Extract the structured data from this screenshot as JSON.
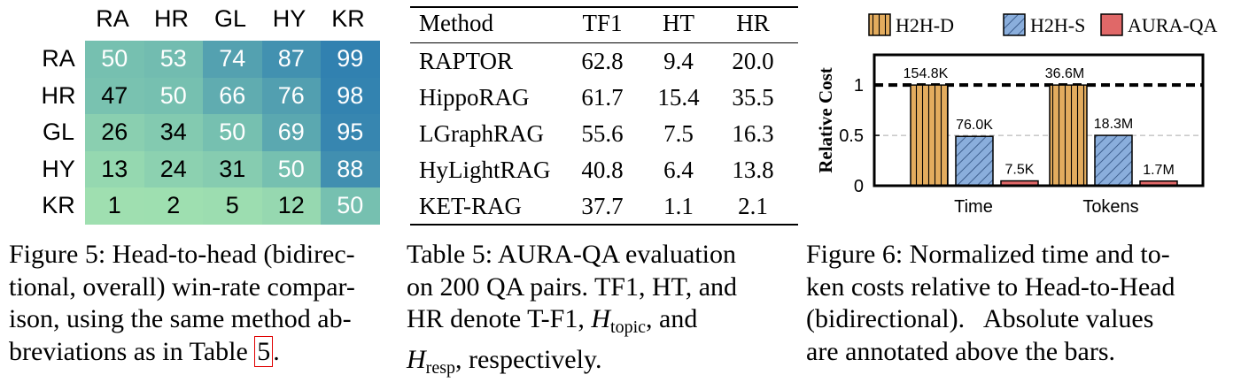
{
  "figure5": {
    "col_labels": [
      "RA",
      "HR",
      "GL",
      "HY",
      "KR"
    ],
    "row_labels": [
      "RA",
      "HR",
      "GL",
      "HY",
      "KR"
    ],
    "values": [
      [
        50,
        53,
        74,
        87,
        99
      ],
      [
        47,
        50,
        66,
        76,
        98
      ],
      [
        26,
        34,
        50,
        69,
        95
      ],
      [
        13,
        24,
        31,
        50,
        88
      ],
      [
        1,
        2,
        5,
        12,
        50
      ]
    ],
    "caption_lines": [
      "Figure 5: Head-to-head (bidirec-",
      "tional, overall) win-rate compar-",
      "ison, using the same method ab-",
      "breviations as in Table "
    ],
    "caption_ref": "5",
    "caption_end": "."
  },
  "table5": {
    "headers": [
      "Method",
      "TF1",
      "HT",
      "HR"
    ],
    "rows": [
      [
        "RAPTOR",
        "62.8",
        "9.4",
        "20.0"
      ],
      [
        "HippoRAG",
        "61.7",
        "15.4",
        "35.5"
      ],
      [
        "LGraphRAG",
        "55.6",
        "7.5",
        "16.3"
      ],
      [
        "HyLightRAG",
        "40.8",
        "6.4",
        "13.8"
      ],
      [
        "KET-RAG",
        "37.7",
        "1.1",
        "2.1"
      ]
    ],
    "caption_line1": "Table 5: AURA-QA evaluation",
    "caption_line2": "on 200 QA pairs. TF1, HT, and",
    "caption_line3_a": "HR denote T-F1,",
    "caption_line3_H": "H",
    "caption_line3_sub": "topic",
    "caption_line3_b": ", and",
    "caption_line4_H": "H",
    "caption_line4_sub": "resp",
    "caption_line4_b": ", respectively."
  },
  "figure6": {
    "caption_lines": [
      "Figure 6: Normalized time and to-",
      "ken costs relative to Head-to-Head",
      "(bidirectional).   Absolute values",
      "are annotated above the bars."
    ]
  },
  "chart_data": {
    "type": "bar",
    "categories": [
      "Time",
      "Tokens"
    ],
    "series": [
      {
        "name": "H2H-D",
        "values": [
          1.0,
          1.0
        ],
        "labels": [
          "154.8K",
          "36.6M"
        ],
        "color": "#e3ac5e",
        "pattern": "vertical"
      },
      {
        "name": "H2H-S",
        "values": [
          0.49,
          0.5
        ],
        "labels": [
          "76.0K",
          "18.3M"
        ],
        "color": "#8aaedc",
        "pattern": "diagonal"
      },
      {
        "name": "AURA-QA",
        "values": [
          0.048,
          0.046
        ],
        "labels": [
          "7.5K",
          "1.7M"
        ],
        "color": "#e06868",
        "pattern": "none"
      }
    ],
    "title": "",
    "xlabel": "",
    "ylabel": "Relative Cost",
    "ylim": [
      0,
      1.3
    ],
    "yticks": [
      0,
      0.5,
      1
    ],
    "ytick_labels": [
      "0",
      "0.5",
      "1"
    ],
    "grid": "dashed horizontal at 0.5 and 1",
    "reference_line": 1,
    "legend": "top"
  }
}
